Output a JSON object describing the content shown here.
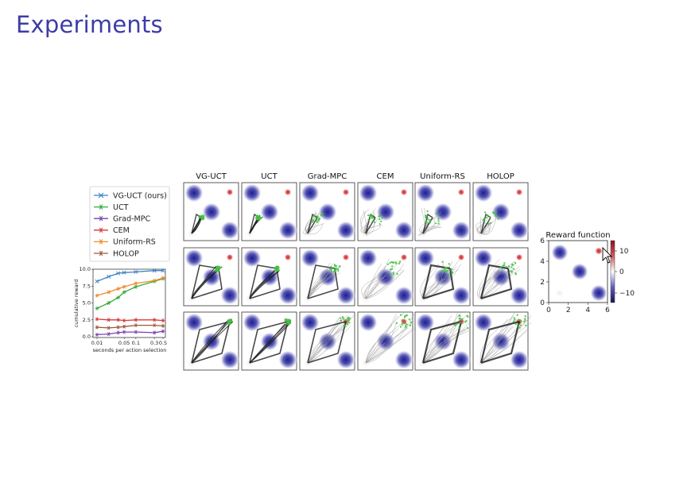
{
  "slide": {
    "title": "Experiments"
  },
  "legend": [
    {
      "label": "VG-UCT (ours)",
      "color": "#3a7fc4",
      "marker": "x"
    },
    {
      "label": "UCT",
      "color": "#3aaa3a",
      "marker": "star"
    },
    {
      "label": "Grad-MPC",
      "color": "#7a3fb5",
      "marker": "star"
    },
    {
      "label": "CEM",
      "color": "#d63a3a",
      "marker": "star"
    },
    {
      "label": "Uniform-RS",
      "color": "#f08a2a",
      "marker": "star"
    },
    {
      "label": "HOLOP",
      "color": "#9a5a3a",
      "marker": "star"
    }
  ],
  "chart_data": {
    "type": "line",
    "x": [
      0.01,
      0.02,
      0.035,
      0.05,
      0.1,
      0.3,
      0.5
    ],
    "x_tick_labels": [
      "0.01",
      "0.05",
      "0.1",
      "0.3",
      "0.5"
    ],
    "x_tick_values": [
      0.01,
      0.05,
      0.1,
      0.3,
      0.5
    ],
    "xlabel": "seconds per action selection",
    "ylabel": "cumulative reward",
    "ylim": [
      0,
      10
    ],
    "y_tick_labels": [
      "0.0",
      "2.5",
      "5.0",
      "7.5",
      "10.0"
    ],
    "y_tick_values": [
      0,
      2.5,
      5,
      7.5,
      10
    ],
    "x_scale": "log",
    "series": [
      {
        "name": "VG-UCT (ours)",
        "values": [
          8.2,
          8.9,
          9.4,
          9.5,
          9.6,
          9.8,
          9.8
        ]
      },
      {
        "name": "UCT",
        "values": [
          4.2,
          5.0,
          5.8,
          6.6,
          7.4,
          8.2,
          8.6
        ]
      },
      {
        "name": "Grad-MPC",
        "values": [
          0.3,
          0.4,
          0.6,
          0.7,
          0.7,
          0.6,
          0.8
        ]
      },
      {
        "name": "CEM",
        "values": [
          2.6,
          2.5,
          2.5,
          2.4,
          2.5,
          2.5,
          2.4
        ]
      },
      {
        "name": "Uniform-RS",
        "values": [
          6.1,
          6.6,
          7.1,
          7.4,
          7.9,
          8.3,
          8.7
        ]
      },
      {
        "name": "HOLOP",
        "values": [
          1.4,
          1.3,
          1.4,
          1.5,
          1.7,
          1.7,
          1.6
        ]
      }
    ]
  },
  "grid": {
    "columns": [
      "VG-UCT",
      "UCT",
      "Grad-MPC",
      "CEM",
      "Uniform-RS",
      "HOLOP"
    ],
    "rows": 3
  },
  "reward_function": {
    "title": "Reward function",
    "x_ticks": [
      "0",
      "2",
      "4",
      "6"
    ],
    "y_ticks": [
      "0",
      "2",
      "4",
      "6"
    ],
    "colorbar_ticks": [
      "10",
      "0",
      "−10"
    ]
  }
}
